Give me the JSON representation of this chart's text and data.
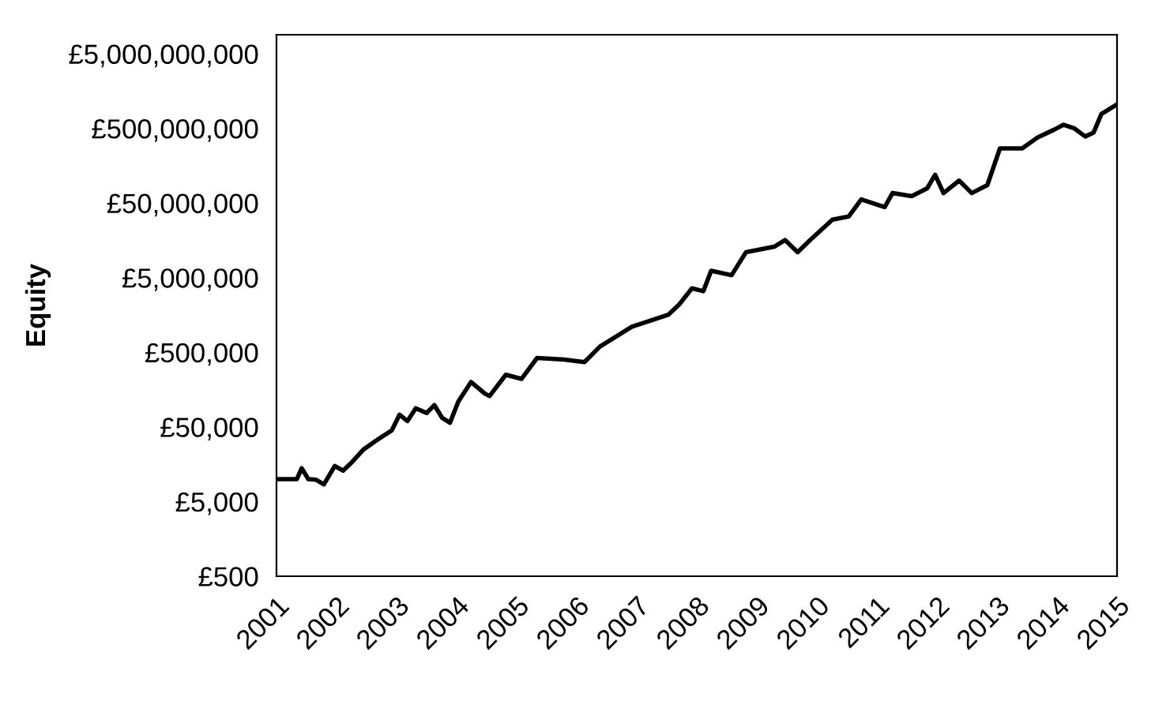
{
  "chart_data": {
    "type": "line",
    "ylabel": "Equity",
    "log": "y",
    "grid": false,
    "x": [
      2001.0,
      2001.34,
      2001.42,
      2001.53,
      2001.66,
      2001.79,
      2001.97,
      2002.11,
      2002.26,
      2002.45,
      2002.71,
      2002.92,
      2003.05,
      2003.18,
      2003.32,
      2003.5,
      2003.63,
      2003.76,
      2003.89,
      2004.03,
      2004.24,
      2004.47,
      2004.55,
      2004.82,
      2005.08,
      2005.34,
      2005.79,
      2006.13,
      2006.39,
      2006.92,
      2007.53,
      2007.71,
      2007.92,
      2008.11,
      2008.24,
      2008.58,
      2008.82,
      2009.29,
      2009.47,
      2009.68,
      2009.89,
      2010.26,
      2010.53,
      2010.74,
      2011.13,
      2011.26,
      2011.58,
      2011.84,
      2011.97,
      2012.11,
      2012.37,
      2012.58,
      2012.84,
      2013.05,
      2013.42,
      2013.68,
      2013.95,
      2014.11,
      2014.29,
      2014.47,
      2014.61,
      2014.74,
      2015.0
    ],
    "series": [
      {
        "color": "#000000",
        "values": [
          10000,
          10000,
          14000,
          10000,
          9800,
          8500,
          15000,
          13000,
          17000,
          25000,
          35000,
          45000,
          73000,
          60000,
          89000,
          77000,
          98000,
          66000,
          57000,
          110000,
          200000,
          140000,
          130000,
          250000,
          220000,
          420000,
          400000,
          370000,
          600000,
          1100000,
          1600000,
          2200000,
          3600000,
          3300000,
          6200000,
          5400000,
          11000000,
          13000000,
          16000000,
          11000000,
          16000000,
          30000000,
          33000000,
          56000000,
          44000000,
          68000000,
          62000000,
          79000000,
          120000000,
          68000000,
          100000000,
          68000000,
          87000000,
          270000000,
          270000000,
          380000000,
          480000000,
          560000000,
          500000000,
          390000000,
          440000000,
          780000000,
          1050000000
        ]
      }
    ],
    "xlim": [
      2001,
      2015
    ],
    "xticks": [
      2001,
      2002,
      2003,
      2004,
      2005,
      2006,
      2007,
      2008,
      2009,
      2010,
      2011,
      2012,
      2013,
      2014,
      2015
    ],
    "ylim": [
      500,
      9000000000
    ],
    "yticks": [
      {
        "value": 500,
        "label": "£500"
      },
      {
        "value": 5000,
        "label": "£5,000"
      },
      {
        "value": 50000,
        "label": "£50,000"
      },
      {
        "value": 500000,
        "label": "£500,000"
      },
      {
        "value": 5000000,
        "label": "£5,000,000"
      },
      {
        "value": 50000000,
        "label": "£50,000,000"
      },
      {
        "value": 500000000,
        "label": "£500,000,000"
      },
      {
        "value": 5000000000,
        "label": "£5,000,000,000"
      }
    ],
    "line_style": "solid",
    "marker": "none"
  }
}
